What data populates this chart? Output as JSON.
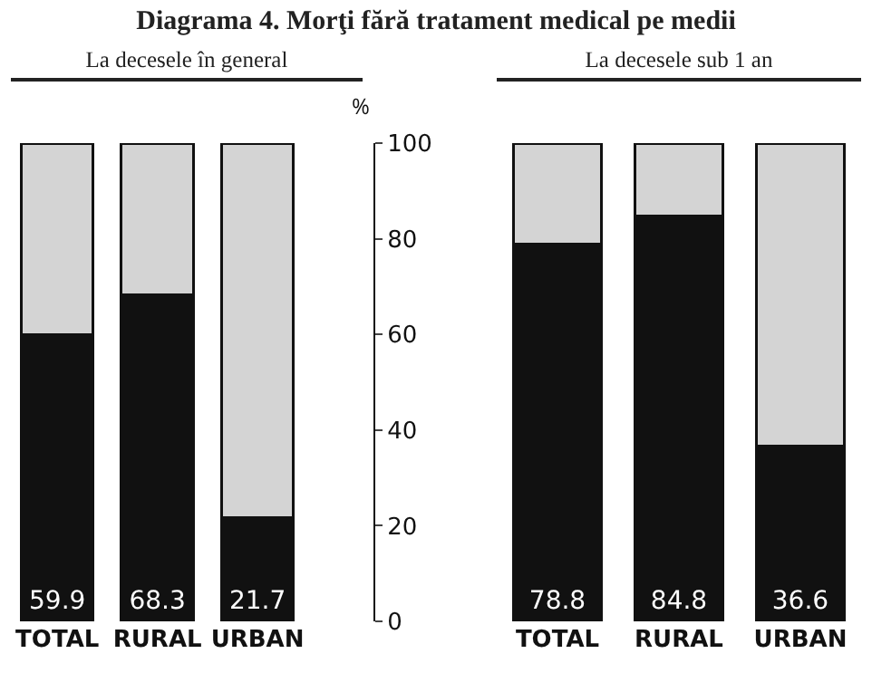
{
  "chart_data": [
    {
      "type": "bar",
      "title": "Diagrama 4. Morţi fără tratament medical pe medii",
      "subtitle": "La decesele în general",
      "ylabel": "%",
      "categories": [
        "TOTAL",
        "RURAL",
        "URBAN"
      ],
      "stacked": true,
      "ylim": [
        0,
        100
      ],
      "yticks": [
        0,
        20,
        40,
        60,
        80,
        100
      ],
      "series": [
        {
          "color": "#111111",
          "values": [
            59.9,
            68.3,
            21.7
          ],
          "value_labels": [
            "59.9",
            "68.3",
            "21.7"
          ]
        },
        {
          "color": "#d4d4d4",
          "values": [
            40.1,
            31.7,
            78.3
          ]
        }
      ]
    },
    {
      "type": "bar",
      "subtitle": "La decesele sub 1 an",
      "categories": [
        "TOTAL",
        "RURAL",
        "URBAN"
      ],
      "stacked": true,
      "ylim": [
        0,
        100
      ],
      "yticks": [
        0,
        20,
        40,
        60,
        80,
        100
      ],
      "tick_labels": "x",
      "series": [
        {
          "color": "#111111",
          "values": [
            78.8,
            84.8,
            36.6
          ],
          "value_labels": [
            "78.8",
            "84.8",
            "36.6"
          ]
        },
        {
          "color": "#d4d4d4",
          "values": [
            21.2,
            15.2,
            63.4
          ]
        }
      ]
    }
  ]
}
